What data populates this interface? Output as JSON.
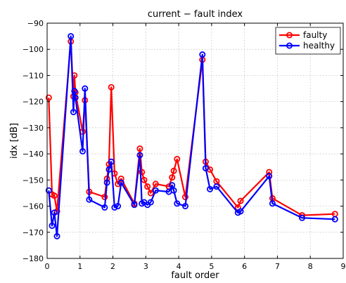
{
  "chart_data": {
    "type": "line",
    "title": "current − fault index",
    "xlabel": "fault order",
    "ylabel": "idx [dB]",
    "xlim": [
      0,
      9
    ],
    "ylim": [
      -180,
      -90
    ],
    "xticks": [
      0,
      1,
      2,
      3,
      4,
      5,
      6,
      7,
      8,
      9
    ],
    "yticks": [
      -180,
      -170,
      -160,
      -150,
      -140,
      -130,
      -120,
      -110,
      -100,
      -90
    ],
    "xtick_labels": [
      "0",
      "1",
      "2",
      "3",
      "4",
      "5",
      "6",
      "7",
      "8",
      "9"
    ],
    "ytick_labels": [
      "−180",
      "−170",
      "−160",
      "−150",
      "−140",
      "−130",
      "−120",
      "−110",
      "−100",
      "−90"
    ],
    "grid": true,
    "legend_position": "top-right",
    "series": [
      {
        "name": "faulty",
        "color": "#ff0000",
        "marker": "circle",
        "x": [
          0.05,
          0.15,
          0.22,
          0.3,
          0.72,
          0.8,
          0.83,
          0.86,
          1.08,
          1.15,
          1.28,
          1.75,
          1.82,
          1.88,
          1.95,
          2.05,
          2.15,
          2.25,
          2.65,
          2.82,
          2.88,
          2.95,
          3.05,
          3.15,
          3.3,
          3.7,
          3.8,
          3.85,
          3.95,
          4.2,
          4.72,
          4.82,
          4.95,
          5.15,
          5.8,
          5.88,
          6.75,
          6.85,
          7.75,
          8.75
        ],
        "y": [
          -118.5,
          -155.5,
          -156,
          -162,
          -97,
          -118,
          -110,
          -116.5,
          -131.5,
          -119.5,
          -154.5,
          -156.5,
          -149.5,
          -144,
          -114.5,
          -147.5,
          -151.5,
          -149.5,
          -159,
          -138,
          -147,
          -150,
          -152.5,
          -155,
          -151.5,
          -152.5,
          -149,
          -146.5,
          -142,
          -156.5,
          -104,
          -143,
          -146,
          -150.5,
          -160.5,
          -158,
          -147,
          -157,
          -163.5,
          -163
        ]
      },
      {
        "name": "healthy",
        "color": "#0000ff",
        "marker": "circle",
        "x": [
          0.05,
          0.15,
          0.22,
          0.3,
          0.72,
          0.8,
          0.83,
          0.86,
          1.08,
          1.15,
          1.28,
          1.75,
          1.82,
          1.88,
          1.95,
          2.05,
          2.15,
          2.25,
          2.65,
          2.82,
          2.88,
          2.95,
          3.05,
          3.15,
          3.3,
          3.7,
          3.8,
          3.85,
          3.95,
          4.2,
          4.72,
          4.82,
          4.95,
          5.15,
          5.8,
          5.88,
          6.75,
          6.85,
          7.75,
          8.75
        ],
        "y": [
          -154,
          -167.5,
          -162.5,
          -171.5,
          -95,
          -124,
          -116,
          -118.5,
          -139,
          -115,
          -157.5,
          -160.5,
          -151,
          -146,
          -143,
          -160.5,
          -160,
          -151,
          -159.5,
          -140.5,
          -159,
          -158.5,
          -159.5,
          -158.5,
          -154,
          -154.5,
          -152,
          -154,
          -159,
          -160,
          -102,
          -145.5,
          -153.5,
          -152.5,
          -162.5,
          -162,
          -148.5,
          -159,
          -164.5,
          -165
        ]
      }
    ]
  }
}
